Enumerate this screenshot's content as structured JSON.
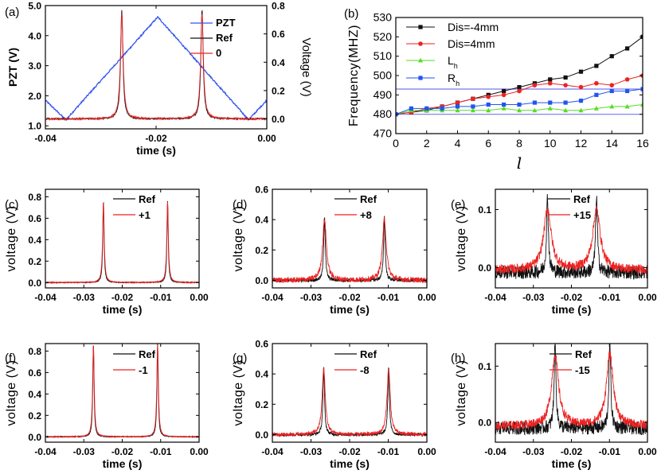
{
  "figure": {
    "description_free": true
  },
  "chart_data": [
    {
      "id": "a",
      "panel_label": "(a)",
      "type": "line",
      "xlabel": "time (s)",
      "ylabel": "PZT (V)",
      "y2label": "Voltage (V)",
      "xlim": [
        -0.04,
        0.0
      ],
      "ylim": [
        0.9,
        5.0
      ],
      "y2lim": [
        -0.07,
        0.8
      ],
      "xticks": [
        -0.04,
        -0.02,
        0.0
      ],
      "xtick_labels": [
        "-0.04",
        "-0.02",
        "0.00"
      ],
      "yticks": [
        1.0,
        2.0,
        3.0,
        4.0,
        5.0
      ],
      "ytick_labels": [
        "1.0",
        "2.0",
        "3.0",
        "4.0",
        "5.0"
      ],
      "y2ticks": [
        0.0,
        0.2,
        0.4,
        0.6,
        0.8
      ],
      "y2tick_labels": [
        "0.0",
        "0.2",
        "0.4",
        "0.6",
        "0.8"
      ],
      "series": [
        {
          "name": "PZT",
          "axis": "left",
          "color": "#3355ee",
          "x": [
            -0.04,
            -0.0363,
            -0.0197,
            -0.0033,
            0.0
          ],
          "values": [
            1.85,
            1.2,
            4.62,
            1.2,
            1.85
          ]
        },
        {
          "name": "Ref",
          "axis": "right",
          "color": "#111111",
          "peaks": [
            -0.0262,
            -0.0117
          ],
          "peak_heights": [
            0.77,
            0.77
          ],
          "baseline": 0.0,
          "width": 0.00025,
          "noise": 0.006
        },
        {
          "name": "0",
          "axis": "right",
          "color": "#ee2222",
          "peaks": [
            -0.0262,
            -0.0117
          ],
          "peak_heights": [
            0.74,
            0.74
          ],
          "baseline": 0.0,
          "width": 0.0003,
          "noise": 0.006
        }
      ]
    },
    {
      "id": "b",
      "panel_label": "(b)",
      "type": "line",
      "xlabel": "l",
      "ylabel": "Frequency(MHZ)",
      "xlim": [
        0,
        16
      ],
      "ylim": [
        470,
        530
      ],
      "xticks": [
        0,
        2,
        4,
        6,
        8,
        10,
        12,
        14,
        16
      ],
      "xtick_labels": [
        "0",
        "2",
        "4",
        "6",
        "8",
        "10",
        "12",
        "14",
        "16"
      ],
      "yticks": [
        470,
        480,
        490,
        500,
        510,
        520,
        530
      ],
      "ytick_labels": [
        "470",
        "480",
        "490",
        "500",
        "510",
        "520",
        "530"
      ],
      "hlines": [
        {
          "y": 480,
          "color": "#7777ee"
        },
        {
          "y": 493,
          "color": "#7777ee"
        }
      ],
      "legend_labels": [
        "Dis=-4mm",
        "Dis=4mm",
        "L",
        "R"
      ],
      "legend_subscripts": [
        "",
        "",
        "h",
        "h"
      ],
      "series": [
        {
          "name": "Dis=-4mm",
          "marker": "square",
          "color": "#111111",
          "x": [
            0,
            1,
            2,
            3,
            4,
            5,
            6,
            7,
            8,
            9,
            10,
            11,
            12,
            13,
            14,
            15,
            16
          ],
          "values": [
            480,
            481,
            482,
            484,
            486,
            488,
            490,
            492,
            494,
            496,
            498,
            499,
            502,
            505,
            510,
            514,
            520
          ]
        },
        {
          "name": "Dis=4mm",
          "marker": "circle",
          "color": "#ee2222",
          "x": [
            0,
            1,
            2,
            3,
            4,
            5,
            6,
            7,
            8,
            9,
            10,
            11,
            12,
            13,
            14,
            15,
            16
          ],
          "values": [
            480,
            481,
            483,
            484,
            486,
            488,
            489,
            490,
            492,
            495,
            496,
            495,
            494,
            496,
            495,
            498,
            500
          ]
        },
        {
          "name": "Lh",
          "marker": "triangle",
          "color": "#55dd22",
          "x": [
            0,
            1,
            2,
            3,
            4,
            5,
            6,
            7,
            8,
            9,
            10,
            11,
            12,
            13,
            14,
            15,
            16
          ],
          "values": [
            480,
            482,
            482,
            482,
            482,
            482,
            482,
            483,
            482,
            482,
            483,
            482,
            482,
            483,
            484,
            484,
            485
          ]
        },
        {
          "name": "Rh",
          "marker": "square",
          "color": "#2255ee",
          "x": [
            0,
            1,
            2,
            3,
            4,
            5,
            6,
            7,
            8,
            9,
            10,
            11,
            12,
            13,
            14,
            15,
            16
          ],
          "values": [
            480,
            483,
            483,
            483,
            484,
            484,
            485,
            485,
            485,
            486,
            486,
            486,
            487,
            490,
            492,
            492,
            493
          ]
        }
      ]
    },
    {
      "id": "c",
      "panel_label": "(c)",
      "type": "line",
      "xlabel": "time (s)",
      "ylabel": "voltage (V)",
      "xlim": [
        -0.04,
        0.0
      ],
      "ylim": [
        -0.05,
        0.87
      ],
      "xticks": [
        -0.04,
        -0.03,
        -0.02,
        -0.01,
        0.0
      ],
      "xtick_labels": [
        "-0.04",
        "-0.03",
        "-0.02",
        "-0.01",
        "0.00"
      ],
      "yticks": [
        0.0,
        0.2,
        0.4,
        0.6,
        0.8
      ],
      "ytick_labels": [
        "0.0",
        "0.2",
        "0.4",
        "0.6",
        "0.8"
      ],
      "series": [
        {
          "name": "Ref",
          "color": "#111111",
          "peaks": [
            -0.0249,
            -0.0082
          ],
          "peak_heights": [
            0.76,
            0.76
          ],
          "baseline": 0.0,
          "width": 0.0002,
          "noise": 0.004
        },
        {
          "name": "+1",
          "color": "#ee2222",
          "peaks": [
            -0.0249,
            -0.0082
          ],
          "peak_heights": [
            0.75,
            0.75
          ],
          "baseline": 0.0,
          "width": 0.00025,
          "noise": 0.004
        }
      ]
    },
    {
      "id": "d",
      "panel_label": "(d)",
      "type": "line",
      "xlabel": "time (s)",
      "ylabel": "voltage (V)",
      "xlim": [
        -0.04,
        0.0
      ],
      "ylim": [
        -0.05,
        0.6
      ],
      "xticks": [
        -0.04,
        -0.03,
        -0.02,
        -0.01,
        0.0
      ],
      "xtick_labels": [
        "-0.04",
        "-0.03",
        "-0.02",
        "-0.01",
        "0.00"
      ],
      "yticks": [
        0.0,
        0.2,
        0.4,
        0.6
      ],
      "ytick_labels": [
        "0.0",
        "0.2",
        "0.4",
        "0.6"
      ],
      "series": [
        {
          "name": "Ref",
          "color": "#111111",
          "peaks": [
            -0.0265,
            -0.011
          ],
          "peak_heights": [
            0.42,
            0.42
          ],
          "baseline": 0.0,
          "width": 0.00025,
          "noise": 0.012
        },
        {
          "name": "+8",
          "color": "#ee2222",
          "peaks": [
            -0.0265,
            -0.011
          ],
          "peak_heights": [
            0.4,
            0.4
          ],
          "baseline": 0.0,
          "width": 0.0006,
          "noise": 0.018
        }
      ]
    },
    {
      "id": "e",
      "panel_label": "(e)",
      "type": "line",
      "xlabel": "time (s)",
      "ylabel": "voltage (V)",
      "xlim": [
        -0.04,
        0.0
      ],
      "ylim": [
        -0.035,
        0.135
      ],
      "xticks": [
        -0.04,
        -0.03,
        -0.02,
        -0.01,
        0.0
      ],
      "xtick_labels": [
        "-0.04",
        "-0.03",
        "-0.02",
        "-0.01",
        "0.00"
      ],
      "yticks": [
        0.0,
        0.1
      ],
      "ytick_labels": [
        "0.0",
        "0.1"
      ],
      "series": [
        {
          "name": "Ref",
          "color": "#111111",
          "peaks": [
            -0.0263,
            -0.0134
          ],
          "peak_heights": [
            0.12,
            0.12
          ],
          "baseline": -0.008,
          "width": 0.0003,
          "noise": 0.012
        },
        {
          "name": "+15",
          "color": "#ee2222",
          "peaks": [
            -0.0263,
            -0.0134
          ],
          "peak_heights": [
            0.1,
            0.1
          ],
          "baseline": -0.004,
          "width": 0.0012,
          "noise": 0.008
        }
      ]
    },
    {
      "id": "f",
      "panel_label": "(f)",
      "type": "line",
      "xlabel": "time (s)",
      "ylabel": "voltage (V)",
      "xlim": [
        -0.04,
        0.0
      ],
      "ylim": [
        -0.05,
        0.87
      ],
      "xticks": [
        -0.04,
        -0.03,
        -0.02,
        -0.01,
        0.0
      ],
      "xtick_labels": [
        "-0.04",
        "-0.03",
        "-0.02",
        "-0.01",
        "0.00"
      ],
      "yticks": [
        0.0,
        0.2,
        0.4,
        0.6,
        0.8
      ],
      "ytick_labels": [
        "0.0",
        "0.2",
        "0.4",
        "0.6",
        "0.8"
      ],
      "series": [
        {
          "name": "Ref",
          "color": "#111111",
          "peaks": [
            -0.0275,
            -0.0108
          ],
          "peak_heights": [
            0.87,
            0.87
          ],
          "baseline": 0.0,
          "width": 0.0002,
          "noise": 0.004
        },
        {
          "name": "-1",
          "color": "#ee2222",
          "peaks": [
            -0.0275,
            -0.0108
          ],
          "peak_heights": [
            0.86,
            0.86
          ],
          "baseline": 0.0,
          "width": 0.00025,
          "noise": 0.004
        }
      ]
    },
    {
      "id": "g",
      "panel_label": "(g)",
      "type": "line",
      "xlabel": "time (s)",
      "ylabel": "voltage (V)",
      "xlim": [
        -0.04,
        0.0
      ],
      "ylim": [
        -0.05,
        0.6
      ],
      "xticks": [
        -0.04,
        -0.03,
        -0.02,
        -0.01,
        0.0
      ],
      "xtick_labels": [
        "-0.04",
        "-0.03",
        "-0.02",
        "-0.01",
        "0.00"
      ],
      "yticks": [
        0.0,
        0.2,
        0.4,
        0.6
      ],
      "ytick_labels": [
        "0.0",
        "0.2",
        "0.4",
        "0.6"
      ],
      "series": [
        {
          "name": "Ref",
          "color": "#111111",
          "peaks": [
            -0.0267,
            -0.0099
          ],
          "peak_heights": [
            0.44,
            0.44
          ],
          "baseline": 0.0,
          "width": 0.00025,
          "noise": 0.01
        },
        {
          "name": "-8",
          "color": "#ee2222",
          "peaks": [
            -0.0267,
            -0.0099
          ],
          "peak_heights": [
            0.43,
            0.43
          ],
          "baseline": 0.0,
          "width": 0.0005,
          "noise": 0.012
        }
      ]
    },
    {
      "id": "h",
      "panel_label": "(h)",
      "type": "line",
      "xlabel": "time (s)",
      "ylabel": "voltage (V)",
      "xlim": [
        -0.04,
        0.0
      ],
      "ylim": [
        -0.035,
        0.14
      ],
      "xticks": [
        -0.04,
        -0.03,
        -0.02,
        -0.01,
        0.0
      ],
      "xtick_labels": [
        "-0.04",
        "-0.03",
        "-0.02",
        "-0.01",
        "0.00"
      ],
      "yticks": [
        0.0,
        0.1
      ],
      "ytick_labels": [
        "0.0",
        "0.1"
      ],
      "series": [
        {
          "name": "Ref",
          "color": "#111111",
          "peaks": [
            -0.0243,
            -0.0099
          ],
          "peak_heights": [
            0.14,
            0.14
          ],
          "baseline": -0.01,
          "width": 0.0003,
          "noise": 0.012
        },
        {
          "name": "-15",
          "color": "#ee2222",
          "peaks": [
            -0.0243,
            -0.0099
          ],
          "peak_heights": [
            0.12,
            0.12
          ],
          "baseline": -0.006,
          "width": 0.0011,
          "noise": 0.008
        }
      ]
    }
  ]
}
